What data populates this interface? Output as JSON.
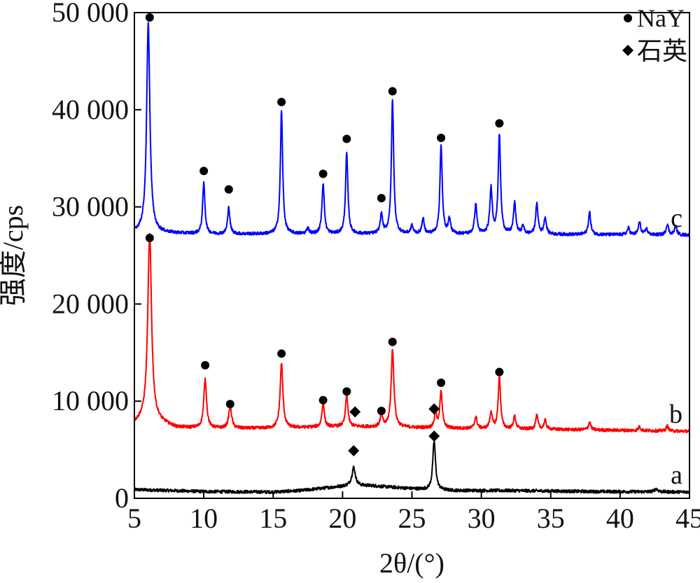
{
  "chart_data": {
    "type": "line",
    "xlabel": "2θ/(°)",
    "ylabel": "强度/cps",
    "xlim": [
      5,
      45
    ],
    "ylim": [
      0,
      50000
    ],
    "x_ticks": [
      5,
      10,
      15,
      20,
      25,
      30,
      35,
      40,
      45
    ],
    "x_tick_labels": [
      "5",
      "10",
      "15",
      "20",
      "25",
      "30",
      "35",
      "40",
      "45"
    ],
    "y_ticks": [
      0,
      10000,
      20000,
      30000,
      40000,
      50000
    ],
    "y_tick_labels": [
      "0",
      "10 000",
      "20 000",
      "30 000",
      "40 000",
      "50 000"
    ],
    "legend": {
      "position": "top-right",
      "entries": [
        {
          "marker": "circle",
          "label": "NaY"
        },
        {
          "marker": "diamond",
          "label": "石英"
        }
      ]
    },
    "series": [
      {
        "label": "a",
        "color": "#000000",
        "baseline": [
          [
            5,
            900
          ],
          [
            10,
            700
          ],
          [
            15,
            650
          ],
          [
            17,
            800
          ],
          [
            19,
            1100
          ],
          [
            20.5,
            1300
          ],
          [
            22,
            1300
          ],
          [
            24,
            1100
          ],
          [
            26,
            900
          ],
          [
            28,
            800
          ],
          [
            32,
            800
          ],
          [
            38,
            700
          ],
          [
            45,
            650
          ]
        ],
        "peaks": [
          {
            "x": 20.8,
            "height": 1900,
            "w": 0.15
          },
          {
            "x": 26.6,
            "height": 5000,
            "w": 0.12
          },
          {
            "x": 42.6,
            "height": 300,
            "w": 0.15
          }
        ],
        "markers": [
          {
            "type": "diamond",
            "x": 20.8,
            "y": 4900
          },
          {
            "type": "diamond",
            "x": 26.6,
            "y": 6400
          }
        ]
      },
      {
        "label": "b",
        "color": "#ff0000",
        "baseline": [
          [
            5,
            7700
          ],
          [
            6,
            8200
          ],
          [
            8,
            7300
          ],
          [
            10,
            7200
          ],
          [
            15,
            7200
          ],
          [
            20,
            7400
          ],
          [
            24,
            7300
          ],
          [
            28,
            7200
          ],
          [
            35,
            7100
          ],
          [
            45,
            6900
          ]
        ],
        "peaks": [
          {
            "x": 6.1,
            "height": 19000,
            "w": 0.16
          },
          {
            "x": 10.1,
            "height": 5000,
            "w": 0.12
          },
          {
            "x": 11.9,
            "height": 2300,
            "w": 0.12
          },
          {
            "x": 15.6,
            "height": 6700,
            "w": 0.12
          },
          {
            "x": 18.6,
            "height": 2500,
            "w": 0.1
          },
          {
            "x": 20.3,
            "height": 3300,
            "w": 0.1
          },
          {
            "x": 22.8,
            "height": 1300,
            "w": 0.1
          },
          {
            "x": 23.6,
            "height": 8000,
            "w": 0.12
          },
          {
            "x": 26.7,
            "height": 1500,
            "w": 0.1
          },
          {
            "x": 27.1,
            "height": 3900,
            "w": 0.1
          },
          {
            "x": 29.6,
            "height": 1200,
            "w": 0.1
          },
          {
            "x": 30.7,
            "height": 1700,
            "w": 0.1
          },
          {
            "x": 31.3,
            "height": 5400,
            "w": 0.1
          },
          {
            "x": 32.4,
            "height": 1300,
            "w": 0.1
          },
          {
            "x": 34.0,
            "height": 1400,
            "w": 0.1
          },
          {
            "x": 34.6,
            "height": 900,
            "w": 0.1
          },
          {
            "x": 37.8,
            "height": 800,
            "w": 0.1
          },
          {
            "x": 41.4,
            "height": 400,
            "w": 0.1
          },
          {
            "x": 43.4,
            "height": 500,
            "w": 0.1
          }
        ],
        "markers": [
          {
            "type": "circle",
            "x": 6.1,
            "y": 26800
          },
          {
            "type": "circle",
            "x": 10.1,
            "y": 13700
          },
          {
            "type": "circle",
            "x": 11.9,
            "y": 9700
          },
          {
            "type": "circle",
            "x": 15.6,
            "y": 14900
          },
          {
            "type": "circle",
            "x": 18.6,
            "y": 10100
          },
          {
            "type": "circle",
            "x": 20.3,
            "y": 11000
          },
          {
            "type": "diamond",
            "x": 20.9,
            "y": 8900
          },
          {
            "type": "circle",
            "x": 22.8,
            "y": 9000
          },
          {
            "type": "circle",
            "x": 23.6,
            "y": 16100
          },
          {
            "type": "diamond",
            "x": 26.6,
            "y": 9200
          },
          {
            "type": "circle",
            "x": 27.1,
            "y": 11900
          },
          {
            "type": "circle",
            "x": 31.3,
            "y": 13000
          }
        ]
      },
      {
        "label": "c",
        "color": "#0000ff",
        "baseline": [
          [
            5,
            27400
          ],
          [
            10,
            27200
          ],
          [
            20,
            27200
          ],
          [
            30,
            27200
          ],
          [
            45,
            27100
          ]
        ],
        "peaks": [
          {
            "x": 6.0,
            "height": 21500,
            "w": 0.14
          },
          {
            "x": 10.0,
            "height": 5200,
            "w": 0.1
          },
          {
            "x": 11.8,
            "height": 2700,
            "w": 0.1
          },
          {
            "x": 15.6,
            "height": 12700,
            "w": 0.1
          },
          {
            "x": 17.5,
            "height": 600,
            "w": 0.1
          },
          {
            "x": 18.6,
            "height": 5200,
            "w": 0.1
          },
          {
            "x": 20.3,
            "height": 8300,
            "w": 0.1
          },
          {
            "x": 22.8,
            "height": 2000,
            "w": 0.1
          },
          {
            "x": 23.6,
            "height": 13800,
            "w": 0.1
          },
          {
            "x": 25.0,
            "height": 800,
            "w": 0.1
          },
          {
            "x": 25.8,
            "height": 1500,
            "w": 0.1
          },
          {
            "x": 27.1,
            "height": 9000,
            "w": 0.1
          },
          {
            "x": 27.7,
            "height": 1500,
            "w": 0.1
          },
          {
            "x": 29.6,
            "height": 3000,
            "w": 0.1
          },
          {
            "x": 30.7,
            "height": 4700,
            "w": 0.1
          },
          {
            "x": 31.3,
            "height": 10200,
            "w": 0.1
          },
          {
            "x": 32.4,
            "height": 3200,
            "w": 0.1
          },
          {
            "x": 33.0,
            "height": 800,
            "w": 0.1
          },
          {
            "x": 34.0,
            "height": 3100,
            "w": 0.1
          },
          {
            "x": 34.6,
            "height": 1700,
            "w": 0.1
          },
          {
            "x": 37.8,
            "height": 2300,
            "w": 0.1
          },
          {
            "x": 40.6,
            "height": 700,
            "w": 0.1
          },
          {
            "x": 41.4,
            "height": 1300,
            "w": 0.1
          },
          {
            "x": 41.9,
            "height": 600,
            "w": 0.1
          },
          {
            "x": 43.4,
            "height": 1100,
            "w": 0.1
          },
          {
            "x": 44.0,
            "height": 900,
            "w": 0.1
          }
        ],
        "markers": [
          {
            "type": "circle",
            "x": 6.1,
            "y": 49500
          },
          {
            "type": "circle",
            "x": 10.0,
            "y": 33700
          },
          {
            "type": "circle",
            "x": 11.8,
            "y": 31800
          },
          {
            "type": "circle",
            "x": 15.6,
            "y": 40800
          },
          {
            "type": "circle",
            "x": 18.6,
            "y": 33400
          },
          {
            "type": "circle",
            "x": 20.3,
            "y": 37000
          },
          {
            "type": "circle",
            "x": 22.8,
            "y": 30900
          },
          {
            "type": "circle",
            "x": 23.6,
            "y": 41900
          },
          {
            "type": "circle",
            "x": 27.1,
            "y": 37100
          },
          {
            "type": "circle",
            "x": 31.3,
            "y": 38600
          }
        ]
      }
    ]
  }
}
